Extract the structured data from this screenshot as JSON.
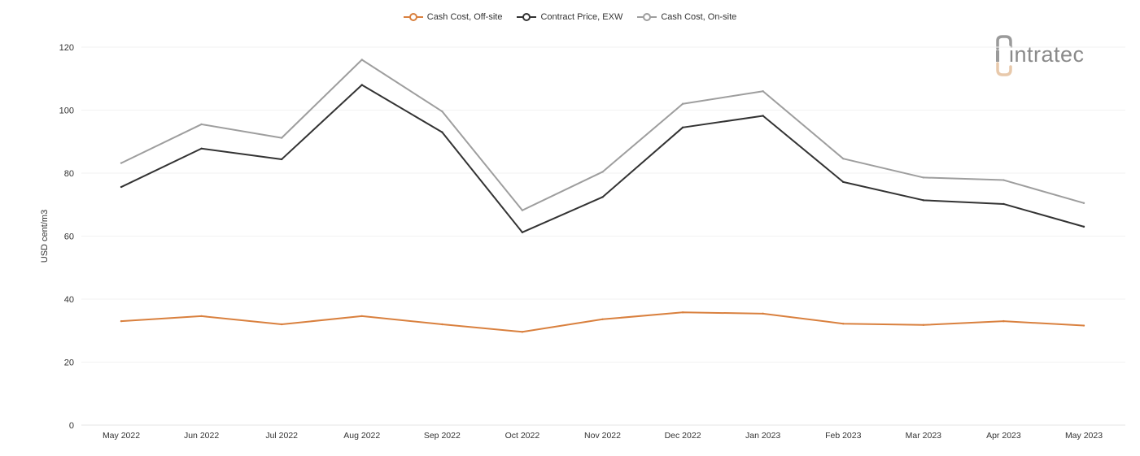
{
  "logo": {
    "text": "intratec",
    "mark_color": "#e8c9ab",
    "text_color": "#8a8a8a"
  },
  "chart_data": {
    "type": "line",
    "title": "",
    "xlabel": "",
    "ylabel": "USD cent/m3",
    "ylim": [
      0,
      120
    ],
    "yticks": [
      0,
      20,
      40,
      60,
      80,
      100,
      120
    ],
    "grid": true,
    "legend_position": "top",
    "categories": [
      "May 2022",
      "Jun 2022",
      "Jul 2022",
      "Aug 2022",
      "Sep 2022",
      "Oct 2022",
      "Nov 2022",
      "Dec 2022",
      "Jan 2023",
      "Feb 2023",
      "Mar 2023",
      "Apr 2023",
      "May 2023"
    ],
    "series": [
      {
        "name": "Cash Cost, Off-site",
        "color": "#d9803e",
        "values": [
          33,
          34.6,
          32,
          34.6,
          32,
          29.6,
          33.6,
          35.8,
          35.4,
          32.2,
          31.8,
          33,
          31.6
        ]
      },
      {
        "name": "Contract Price, EXW",
        "color": "#333333",
        "values": [
          75.6,
          87.8,
          84.4,
          108,
          93,
          61.2,
          72.4,
          94.5,
          98.2,
          77.2,
          71.4,
          70.2,
          63
        ]
      },
      {
        "name": "Cash Cost, On-site",
        "color": "#9e9e9e",
        "values": [
          83.2,
          95.5,
          91.2,
          116,
          99.6,
          68.2,
          80.4,
          102,
          106,
          84.6,
          78.6,
          77.8,
          70.5
        ]
      }
    ]
  }
}
